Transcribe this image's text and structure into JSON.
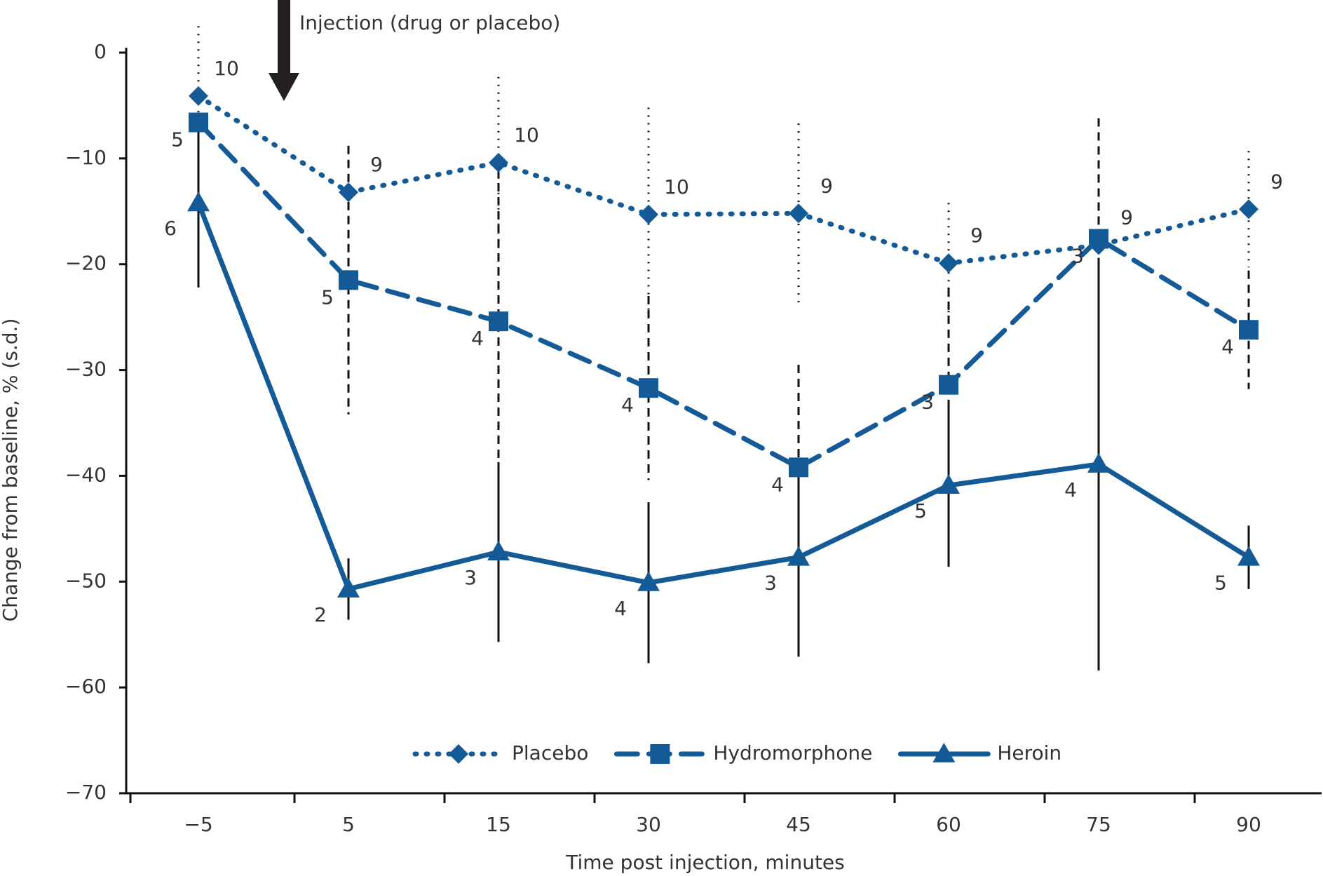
{
  "chart_data": {
    "type": "line",
    "annotation": "Injection (drug or placebo)",
    "x_label": "Time post injection, minutes",
    "y_label": "Change from baseline, % (s.d.)",
    "categories": [
      "−5",
      "5",
      "15",
      "30",
      "45",
      "60",
      "75",
      "90"
    ],
    "ylim": [
      -70,
      0
    ],
    "yticks": [
      0,
      {
        "value": -10,
        "label": "−10"
      },
      {
        "value": -20,
        "label": "−20"
      },
      {
        "value": -30,
        "label": "−30"
      },
      {
        "value": -40,
        "label": "−40"
      },
      {
        "value": -50,
        "label": "−50"
      },
      {
        "value": -60,
        "label": "−60"
      },
      {
        "value": -70,
        "label": "−70"
      }
    ],
    "series": [
      {
        "name": "Placebo",
        "color": "#135a96",
        "line_style": "dotted",
        "marker": "diamond",
        "values": [
          -4.1,
          -13.2,
          -10.4,
          -15.3,
          -15.2,
          -19.9,
          -18.2,
          -14.8
        ],
        "errors": [
          6.6,
          null,
          8.1,
          10.1,
          8.5,
          5.7,
          null,
          5.5
        ],
        "n_labels": [
          "10",
          "9",
          "10",
          "10",
          "9",
          "9",
          "9",
          "9"
        ]
      },
      {
        "name": "Hydromorphone",
        "color": "#135a96",
        "line_style": "dashed",
        "marker": "square",
        "values": [
          -6.6,
          -21.5,
          -25.4,
          -31.7,
          -39.2,
          -31.4,
          -17.6,
          -26.2
        ],
        "errors": [
          null,
          12.7,
          14.4,
          8.7,
          9.7,
          9.2,
          11.4,
          5.6
        ],
        "n_labels": [
          "5",
          "5",
          "4",
          "4",
          "4",
          "3",
          "3",
          "4"
        ]
      },
      {
        "name": "Heroin",
        "color": "#135a96",
        "line_style": "solid",
        "marker": "triangle",
        "values": [
          -14.2,
          -50.7,
          -47.2,
          -50.1,
          -47.7,
          -40.9,
          -38.9,
          -47.7
        ],
        "errors": [
          8.0,
          2.9,
          8.5,
          7.6,
          9.4,
          7.7,
          19.5,
          3.0
        ],
        "n_labels": [
          "6",
          "2",
          "3",
          "4",
          "3",
          "5",
          "4",
          "5"
        ]
      }
    ]
  }
}
